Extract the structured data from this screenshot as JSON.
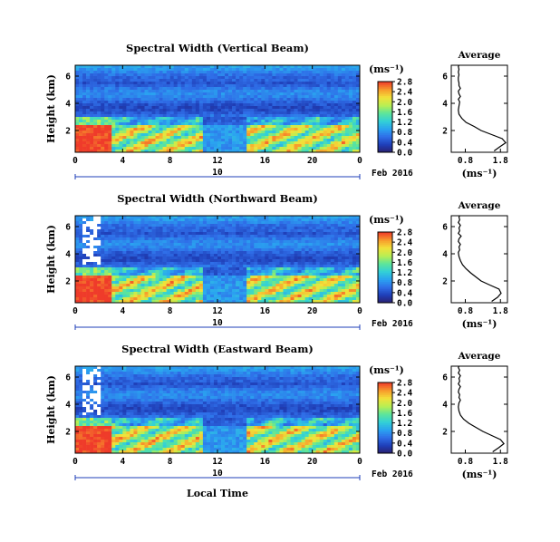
{
  "figure": {
    "bottom_xlabel": "Local Time",
    "date_label": "Feb 2016",
    "average_title": "Average",
    "colorbar_unit": "(ms⁻¹)",
    "average_xlabel": "(ms⁻¹)",
    "date_scale_tick": "10"
  },
  "colors": {
    "colormap": [
      "#2a1f6e",
      "#1f3fb8",
      "#2f6ee8",
      "#2aa3f0",
      "#33d1d6",
      "#5de59a",
      "#b9ef52",
      "#f2e13a",
      "#f79b2c",
      "#ef3b2a"
    ],
    "background": "#ffffff",
    "date_line": "#1f3fb8"
  },
  "chart_data": [
    {
      "type": "heatmap",
      "title": "Spectral Width (Vertical Beam)",
      "ylabel": "Height (km)",
      "xlim": [
        0,
        24
      ],
      "ylim": [
        0.4,
        6.8
      ],
      "x_ticks": [
        "0",
        "4",
        "8",
        "12",
        "16",
        "20",
        "0"
      ],
      "y_ticks": [
        "2",
        "4",
        "6"
      ],
      "colorbar": {
        "vmin": 0,
        "vmax": 2.8,
        "ticks": [
          "0.0",
          "0.4",
          "0.8",
          "1.2",
          "1.6",
          "2.0",
          "2.4",
          "2.8"
        ]
      },
      "average_profile": {
        "x_ticks": [
          "0.8",
          "1.8"
        ],
        "y_ticks": [
          "2",
          "4",
          "6"
        ],
        "xlim": [
          0.4,
          2.0
        ],
        "ylim": [
          0.4,
          6.8
        ],
        "x": [
          1.62,
          1.78,
          1.95,
          1.85,
          1.55,
          1.25,
          1.05,
          0.82,
          0.7,
          0.62,
          0.6,
          0.62,
          0.64,
          0.6,
          0.66,
          0.62,
          0.6,
          0.66,
          0.62,
          0.62,
          0.6,
          0.6,
          0.62,
          0.6,
          0.62,
          0.6,
          0.62
        ],
        "y": [
          0.5,
          0.8,
          1.1,
          1.4,
          1.7,
          2.0,
          2.3,
          2.6,
          2.9,
          3.2,
          3.5,
          3.8,
          4.1,
          4.3,
          4.5,
          4.7,
          4.9,
          5.1,
          5.3,
          5.5,
          5.7,
          5.9,
          6.1,
          6.3,
          6.5,
          6.7,
          6.8
        ]
      }
    },
    {
      "type": "heatmap",
      "title": "Spectral Width (Northward Beam)",
      "ylabel": "Height (km)",
      "xlim": [
        0,
        24
      ],
      "ylim": [
        0.4,
        6.8
      ],
      "x_ticks": [
        "0",
        "4",
        "8",
        "12",
        "16",
        "20",
        "0"
      ],
      "y_ticks": [
        "2",
        "4",
        "6"
      ],
      "colorbar": {
        "vmin": 0,
        "vmax": 2.8,
        "ticks": [
          "0.0",
          "0.4",
          "0.8",
          "1.2",
          "1.6",
          "2.0",
          "2.4",
          "2.8"
        ]
      },
      "average_profile": {
        "x_ticks": [
          "0.8",
          "1.8"
        ],
        "y_ticks": [
          "2",
          "4",
          "6"
        ],
        "xlim": [
          0.4,
          2.0
        ],
        "ylim": [
          0.4,
          6.8
        ],
        "x": [
          1.55,
          1.72,
          1.82,
          1.76,
          1.5,
          1.25,
          1.1,
          0.95,
          0.82,
          0.72,
          0.66,
          0.62,
          0.6,
          0.64,
          0.62,
          0.66,
          0.6,
          0.62,
          0.68,
          0.6,
          0.64,
          0.62,
          0.66,
          0.6,
          0.64,
          0.62,
          0.64
        ],
        "y": [
          0.5,
          0.8,
          1.1,
          1.4,
          1.7,
          2.0,
          2.3,
          2.6,
          2.9,
          3.2,
          3.5,
          3.8,
          4.1,
          4.3,
          4.5,
          4.7,
          4.9,
          5.1,
          5.3,
          5.5,
          5.7,
          5.9,
          6.1,
          6.3,
          6.5,
          6.7,
          6.8
        ]
      }
    },
    {
      "type": "heatmap",
      "title": "Spectral Width (Eastward Beam)",
      "ylabel": "Height (km)",
      "xlim": [
        0,
        24
      ],
      "ylim": [
        0.4,
        6.8
      ],
      "x_ticks": [
        "0",
        "4",
        "8",
        "12",
        "16",
        "20",
        "0"
      ],
      "y_ticks": [
        "2",
        "4",
        "6"
      ],
      "colorbar": {
        "vmin": 0,
        "vmax": 2.8,
        "ticks": [
          "0.0",
          "0.4",
          "0.8",
          "1.2",
          "1.6",
          "2.0",
          "2.4",
          "2.8"
        ]
      },
      "average_profile": {
        "x_ticks": [
          "0.8",
          "1.8"
        ],
        "y_ticks": [
          "2",
          "4",
          "6"
        ],
        "xlim": [
          0.4,
          2.0
        ],
        "ylim": [
          0.4,
          6.8
        ],
        "x": [
          1.58,
          1.75,
          1.9,
          1.8,
          1.55,
          1.3,
          1.1,
          0.9,
          0.75,
          0.66,
          0.62,
          0.6,
          0.62,
          0.66,
          0.62,
          0.64,
          0.6,
          0.62,
          0.66,
          0.6,
          0.64,
          0.62,
          0.66,
          0.6,
          0.64,
          0.6,
          0.62
        ],
        "y": [
          0.5,
          0.8,
          1.1,
          1.4,
          1.7,
          2.0,
          2.3,
          2.6,
          2.9,
          3.2,
          3.5,
          3.8,
          4.1,
          4.3,
          4.5,
          4.7,
          4.9,
          5.1,
          5.3,
          5.5,
          5.7,
          5.9,
          6.1,
          6.3,
          6.5,
          6.7,
          6.8
        ]
      }
    }
  ]
}
